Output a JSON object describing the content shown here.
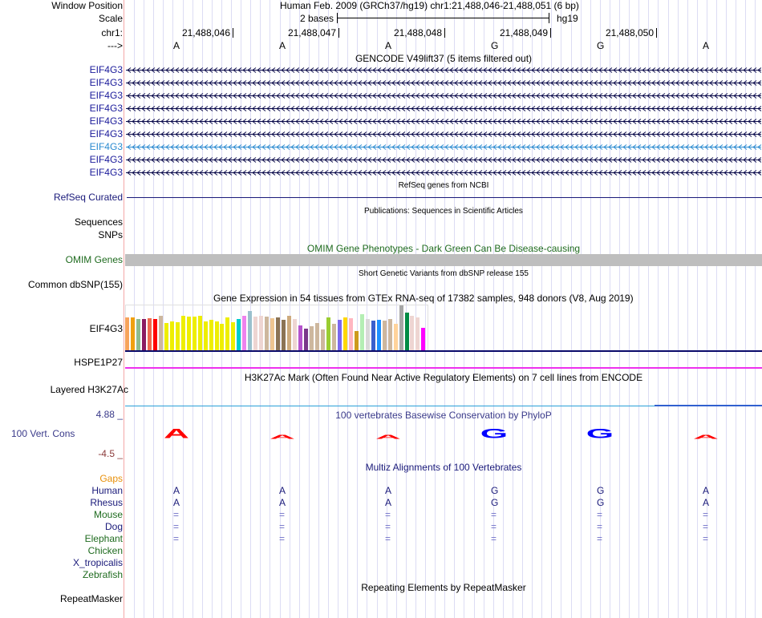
{
  "header": {
    "window_position_label": "Window Position",
    "window_position_text": "Human Feb. 2009 (GRCh37/hg19)   chr1:21,488,046-21,488,051 (6 bp)",
    "scale_label": "Scale",
    "scale_text": "2 bases",
    "scale_assembly": "hg19",
    "chrom_label": "chr1:",
    "positions": [
      "21,488,046",
      "21,488,047",
      "21,488,048",
      "21,488,049",
      "21,488,050"
    ],
    "strand_label": "--->",
    "bases": [
      "A",
      "A",
      "A",
      "G",
      "G",
      "A"
    ]
  },
  "gencode": {
    "title": "GENCODE V49lift37 (5 items filtered out)",
    "genes": [
      "EIF4G3",
      "EIF4G3",
      "EIF4G3",
      "EIF4G3",
      "EIF4G3",
      "EIF4G3",
      "EIF4G3",
      "EIF4G3",
      "EIF4G3"
    ],
    "highlighted_index": 6
  },
  "refseq": {
    "title": "RefSeq genes from NCBI",
    "label": "RefSeq Curated"
  },
  "publications": {
    "title": "Publications: Sequences in Scientific Articles",
    "label1": "Sequences",
    "label2": "SNPs"
  },
  "omim": {
    "title": "OMIM Gene Phenotypes - Dark Green Can Be Disease-causing",
    "label": "OMIM Genes"
  },
  "dbsnp": {
    "title": "Short Genetic Variants from dbSNP release 155",
    "label": "Common dbSNP(155)"
  },
  "gtex": {
    "title": "Gene Expression in 54 tissues from GTEx RNA-seq of 17382 samples, 948 donors (V8, Aug 2019)",
    "label": "EIF4G3",
    "label2": "HSPE1P27",
    "values": [
      42,
      42,
      40,
      40,
      41,
      40,
      44,
      35,
      37,
      36,
      44,
      43,
      43,
      44,
      37,
      39,
      37,
      34,
      42,
      36,
      40,
      44,
      50,
      43,
      44,
      43,
      41,
      42,
      39,
      44,
      40,
      32,
      27,
      31,
      35,
      26,
      42,
      34,
      39,
      42,
      41,
      24,
      46,
      40,
      38,
      39,
      38,
      40,
      34,
      57,
      48,
      44,
      42,
      28
    ],
    "colors": [
      "#f7a35c",
      "#f0a010",
      "#8fbc8f",
      "#8b1c62",
      "#ee6a50",
      "#ff0000",
      "#cdb79e",
      "#eeee00",
      "#eeee00",
      "#eeee00",
      "#eeee00",
      "#eeee00",
      "#eeee00",
      "#eeee00",
      "#eeee00",
      "#eeee00",
      "#eeee00",
      "#eeee00",
      "#eeee00",
      "#eeee00",
      "#00cdcd",
      "#ee82ee",
      "#9ac0cd",
      "#eed5d2",
      "#eed5d2",
      "#cdb79e",
      "#eec591",
      "#8b7355",
      "#8b7355",
      "#cdaa7d",
      "#eed5d2",
      "#b452cd",
      "#7a378b",
      "#cdb79e",
      "#cdb79e",
      "#cdb79e",
      "#9acd32",
      "#cdb79e",
      "#7b68ee",
      "#ffd700",
      "#ffb6c1",
      "#cd9b1d",
      "#b4eeb4",
      "#d9d9d9",
      "#3a5fcd",
      "#1e90ff",
      "#cdb79e",
      "#cdb79e",
      "#ffd39b",
      "#a6a6a6",
      "#008b45",
      "#eed5d2",
      "#eed5d2",
      "#ff00ff"
    ]
  },
  "h3k27ac": {
    "title": "H3K27Ac Mark (Often Found Near Active Regulatory Elements) on 7 cell lines from ENCODE",
    "label": "Layered H3K27Ac"
  },
  "conservation": {
    "title": "100 vertebrates Basewise Conservation by PhyloP",
    "label": "100 Vert. Cons",
    "max_label": "4.88 _",
    "min_label": "-4.5 _",
    "logo": [
      {
        "base": "A",
        "h": 1.0,
        "color": "#ff0000"
      },
      {
        "base": "A",
        "h": 0.45,
        "color": "#ff0000"
      },
      {
        "base": "A",
        "h": 0.45,
        "color": "#ff0000"
      },
      {
        "base": "G",
        "h": 1.0,
        "color": "#0000ff"
      },
      {
        "base": "G",
        "h": 1.0,
        "color": "#0000ff"
      },
      {
        "base": "A",
        "h": 0.45,
        "color": "#ff0000"
      }
    ]
  },
  "multiz": {
    "title": "Multiz Alignments of 100 Vertebrates",
    "gaps_label": "Gaps",
    "species": [
      {
        "name": "Human",
        "cls": "navy",
        "row": [
          "A",
          "A",
          "A",
          "G",
          "G",
          "A"
        ]
      },
      {
        "name": "Rhesus",
        "cls": "navy",
        "row": [
          "A",
          "A",
          "A",
          "G",
          "G",
          "A"
        ]
      },
      {
        "name": "Mouse",
        "cls": "green",
        "row": [
          "=",
          "=",
          "=",
          "=",
          "=",
          "="
        ]
      },
      {
        "name": "Dog",
        "cls": "navy",
        "row": [
          "=",
          "=",
          "=",
          "=",
          "=",
          "="
        ]
      },
      {
        "name": "Elephant",
        "cls": "green",
        "row": [
          "=",
          "=",
          "=",
          "=",
          "=",
          "="
        ]
      },
      {
        "name": "Chicken",
        "cls": "green",
        "row": []
      },
      {
        "name": "X_tropicalis",
        "cls": "navy",
        "row": []
      },
      {
        "name": "Zebrafish",
        "cls": "green",
        "row": []
      }
    ]
  },
  "repeatmasker": {
    "title": "Repeating Elements by RepeatMasker",
    "label": "RepeatMasker"
  }
}
